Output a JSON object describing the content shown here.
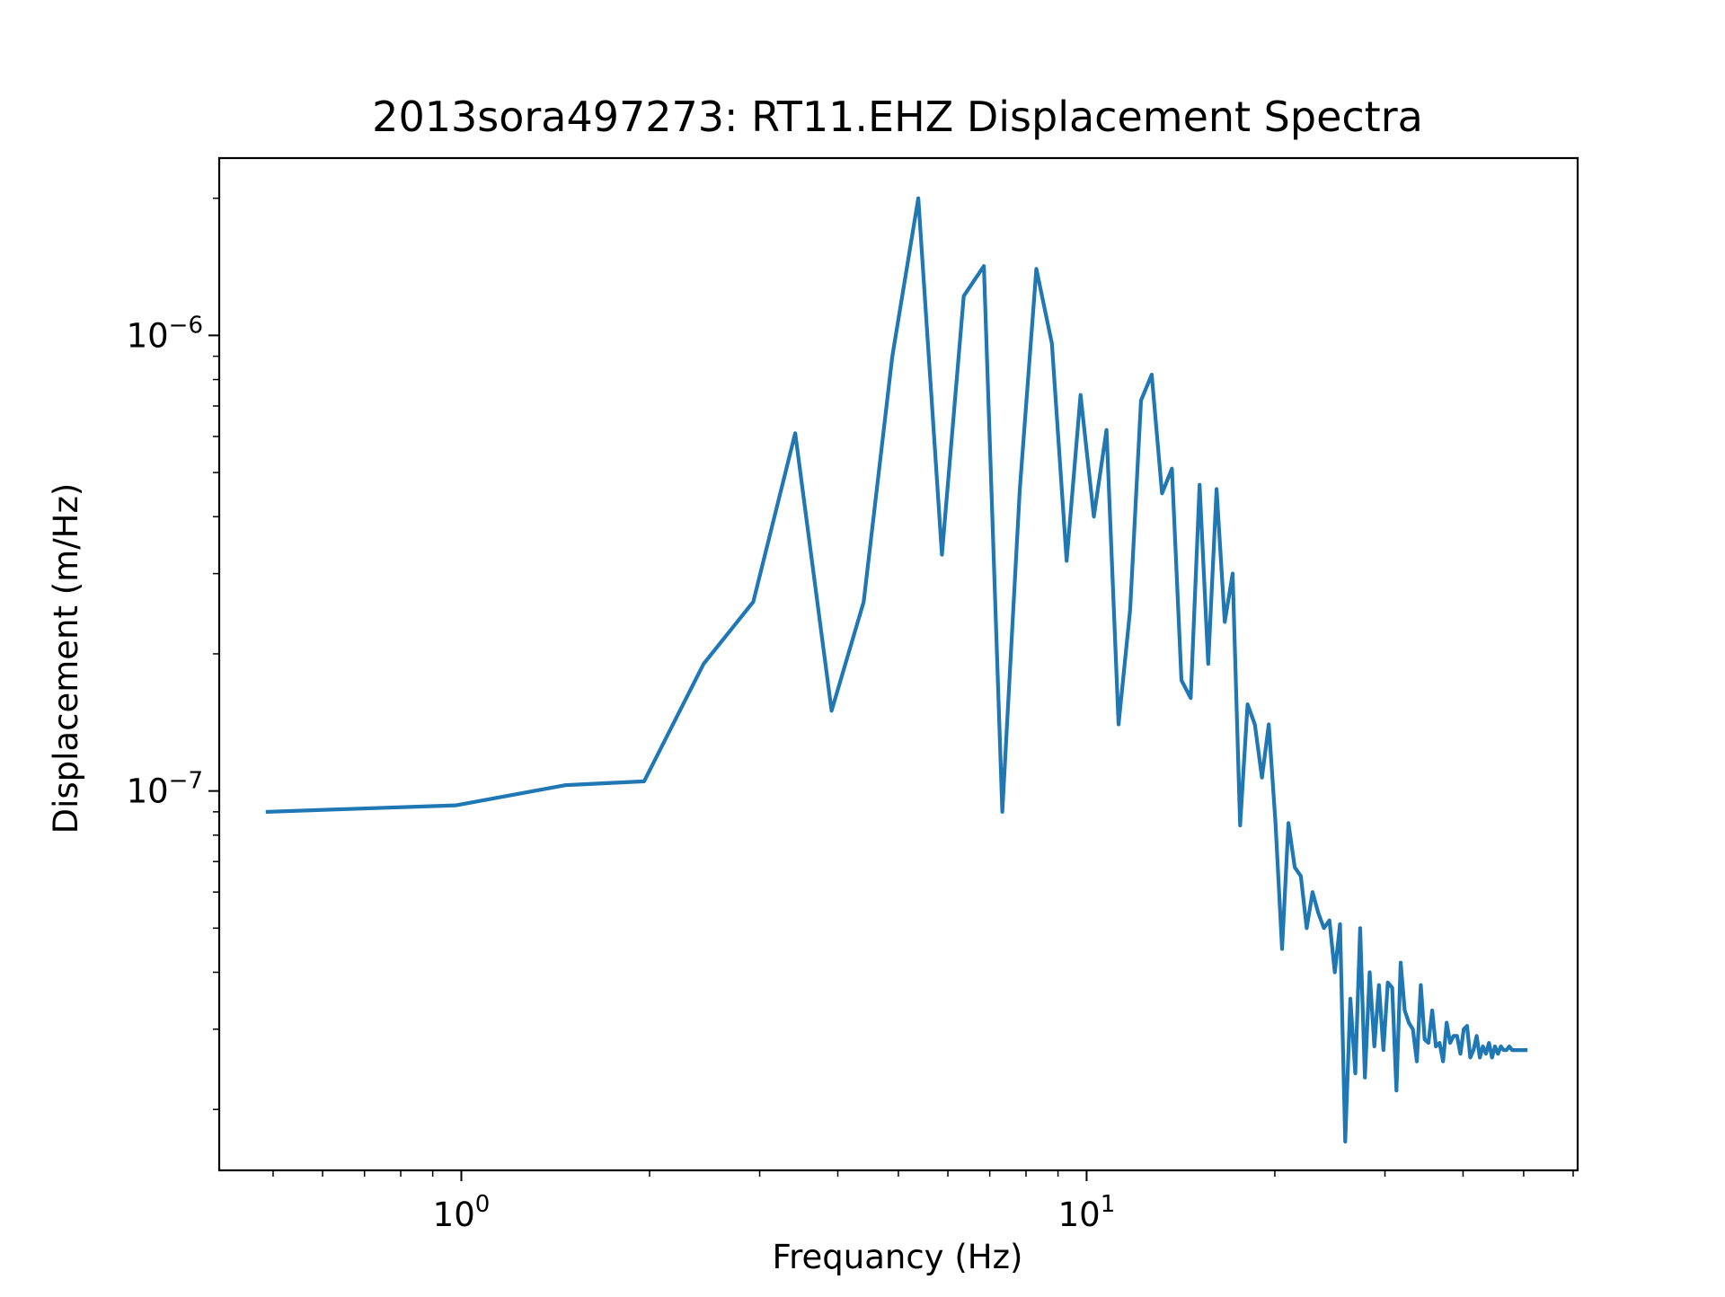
{
  "chart_data": {
    "type": "line",
    "title": "2013sora497273: RT11.EHZ Displacement Spectra",
    "xlabel": "Frequancy (Hz)",
    "ylabel": "Displacement (m/Hz)",
    "xscale": "log",
    "yscale": "log",
    "xlim": [
      0.41,
      61
    ],
    "ylim": [
      1.47e-08,
      2.45e-06
    ],
    "grid": false,
    "line_color": "#1f77b4",
    "x_ticks": [
      {
        "value": 1,
        "base": "10",
        "exp": "0"
      },
      {
        "value": 10,
        "base": "10",
        "exp": "1"
      }
    ],
    "y_ticks": [
      {
        "value": 1e-07,
        "base": "10",
        "exp": "−7"
      },
      {
        "value": 1e-06,
        "base": "10",
        "exp": "−6"
      }
    ],
    "series": [
      {
        "x": [
          0.49,
          0.98,
          1.47,
          1.96,
          2.44,
          2.93,
          3.42,
          3.91,
          4.4,
          4.89,
          5.38,
          5.87,
          6.36,
          6.85,
          7.33,
          7.82,
          8.31,
          8.8,
          9.29,
          9.78,
          10.27,
          10.76,
          11.25,
          11.74,
          12.22,
          12.71,
          13.2,
          13.69,
          14.18,
          14.67,
          15.16,
          15.65,
          16.14,
          16.63,
          17.12,
          17.6,
          18.09,
          18.58,
          19.07,
          19.56,
          20.05,
          20.54,
          21.03,
          21.52,
          22.01,
          22.49,
          22.98,
          23.47,
          23.96,
          24.45,
          24.94,
          25.43,
          25.92,
          26.41,
          26.9,
          27.38,
          27.87,
          28.36,
          28.85,
          29.34,
          29.83,
          30.32,
          30.81,
          31.3,
          31.79,
          32.27,
          32.76,
          33.25,
          33.74,
          34.23,
          34.72,
          35.21,
          35.7,
          36.19,
          36.68,
          37.16,
          37.65,
          38.14,
          38.63,
          39.12,
          39.61,
          40.1,
          40.59,
          41.08,
          41.57,
          42.05,
          42.54,
          43.03,
          43.52,
          44.01,
          44.5,
          44.99,
          45.48,
          45.97,
          46.46,
          46.94,
          47.43,
          47.92,
          48.41,
          48.9,
          49.39,
          49.88,
          50.37
        ],
        "y": [
          9e-08,
          9.3e-08,
          1.03e-07,
          1.05e-07,
          1.9e-07,
          2.6e-07,
          6.1e-07,
          1.5e-07,
          2.6e-07,
          9e-07,
          2e-06,
          3.3e-07,
          1.22e-06,
          1.42e-06,
          9e-08,
          4.6e-07,
          1.4e-06,
          9.6e-07,
          3.2e-07,
          7.4e-07,
          4e-07,
          6.2e-07,
          1.4e-07,
          2.5e-07,
          7.2e-07,
          8.2e-07,
          4.5e-07,
          5.1e-07,
          1.75e-07,
          1.6e-07,
          4.7e-07,
          1.9e-07,
          4.6e-07,
          2.35e-07,
          3e-07,
          8.4e-08,
          1.55e-07,
          1.4e-07,
          1.07e-07,
          1.4e-07,
          8.5e-08,
          4.5e-08,
          8.5e-08,
          6.8e-08,
          6.5e-08,
          5e-08,
          6e-08,
          5.4e-08,
          5e-08,
          5.2e-08,
          4e-08,
          5.1e-08,
          1.7e-08,
          3.5e-08,
          2.4e-08,
          5e-08,
          2.35e-08,
          4e-08,
          2.75e-08,
          3.75e-08,
          2.7e-08,
          3.8e-08,
          3.7e-08,
          2.2e-08,
          4.2e-08,
          3.3e-08,
          3.1e-08,
          3e-08,
          2.55e-08,
          3.75e-08,
          2.85e-08,
          2.8e-08,
          3.3e-08,
          2.75e-08,
          2.8e-08,
          2.55e-08,
          3.1e-08,
          2.8e-08,
          2.9e-08,
          2.9e-08,
          2.65e-08,
          3e-08,
          3.05e-08,
          2.6e-08,
          2.7e-08,
          2.9e-08,
          2.6e-08,
          2.75e-08,
          2.65e-08,
          2.8e-08,
          2.6e-08,
          2.75e-08,
          2.65e-08,
          2.75e-08,
          2.7e-08,
          2.7e-08,
          2.75e-08,
          2.7e-08,
          2.7e-08,
          2.7e-08,
          2.7e-08,
          2.7e-08,
          2.7e-08
        ]
      }
    ]
  }
}
